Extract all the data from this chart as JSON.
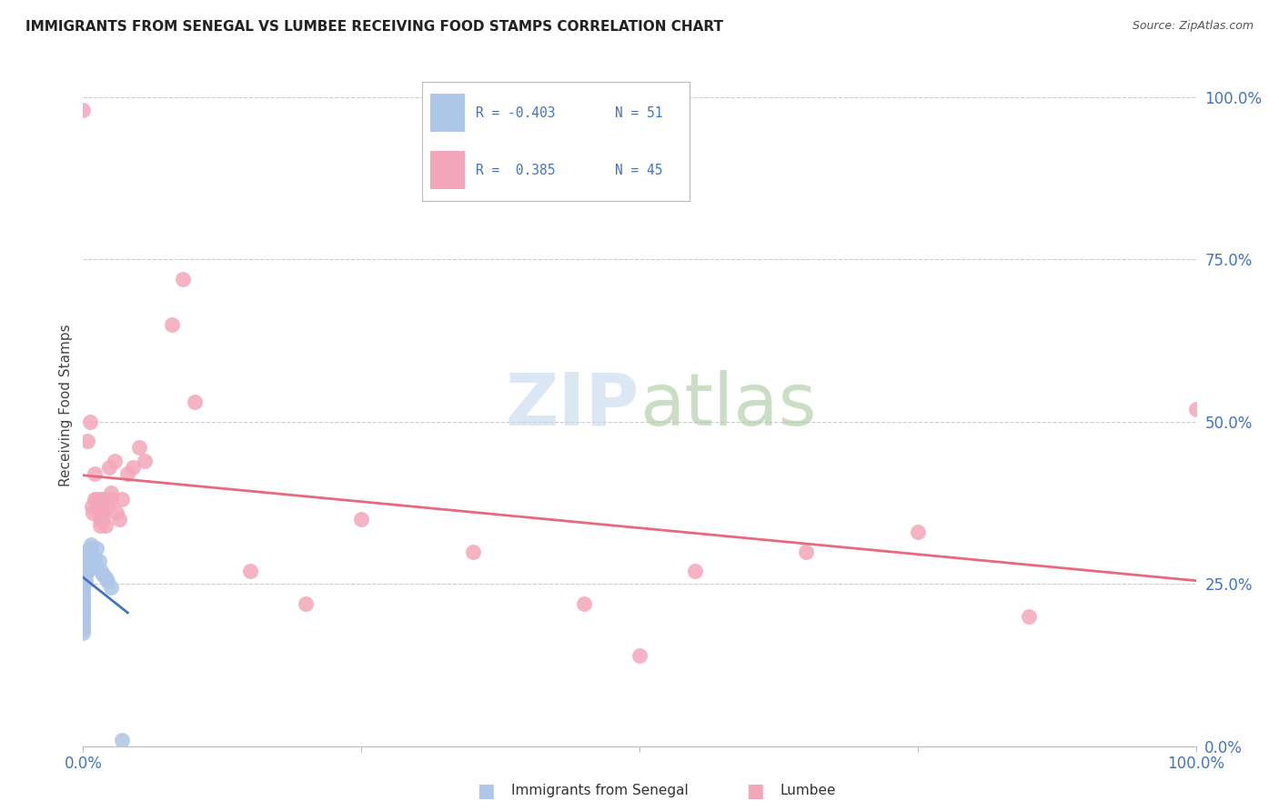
{
  "title": "IMMIGRANTS FROM SENEGAL VS LUMBEE RECEIVING FOOD STAMPS CORRELATION CHART",
  "source": "Source: ZipAtlas.com",
  "ylabel": "Receiving Food Stamps",
  "xlim": [
    0.0,
    1.0
  ],
  "ylim": [
    0.0,
    1.05
  ],
  "grid_color": "#cccccc",
  "background_color": "#ffffff",
  "senegal_color": "#aec6e8",
  "lumbee_color": "#f4a7b9",
  "senegal_line_color": "#4472c4",
  "lumbee_line_color": "#e8697d",
  "watermark_zip_color": "#c8d8ea",
  "watermark_atlas_color": "#a8c8a8",
  "senegal_x": [
    0.0,
    0.0,
    0.0,
    0.0,
    0.0,
    0.0,
    0.0,
    0.0,
    0.0,
    0.0,
    0.0,
    0.0,
    0.0,
    0.0,
    0.0,
    0.0,
    0.0,
    0.0,
    0.0,
    0.0,
    0.0,
    0.0,
    0.0,
    0.0,
    0.0,
    0.0,
    0.002,
    0.002,
    0.002,
    0.002,
    0.002,
    0.004,
    0.004,
    0.004,
    0.005,
    0.005,
    0.006,
    0.006,
    0.007,
    0.007,
    0.008,
    0.009,
    0.01,
    0.012,
    0.014,
    0.016,
    0.018,
    0.02,
    0.022,
    0.025,
    0.035
  ],
  "senegal_y": [
    0.3,
    0.295,
    0.29,
    0.285,
    0.28,
    0.275,
    0.27,
    0.265,
    0.26,
    0.255,
    0.25,
    0.245,
    0.24,
    0.235,
    0.23,
    0.225,
    0.22,
    0.215,
    0.21,
    0.205,
    0.2,
    0.195,
    0.19,
    0.185,
    0.18,
    0.175,
    0.295,
    0.285,
    0.275,
    0.265,
    0.255,
    0.3,
    0.285,
    0.27,
    0.295,
    0.28,
    0.305,
    0.29,
    0.31,
    0.295,
    0.285,
    0.275,
    0.29,
    0.305,
    0.285,
    0.27,
    0.265,
    0.26,
    0.255,
    0.245,
    0.01
  ],
  "lumbee_x": [
    0.0,
    0.004,
    0.006,
    0.008,
    0.009,
    0.01,
    0.01,
    0.012,
    0.013,
    0.014,
    0.015,
    0.015,
    0.016,
    0.017,
    0.018,
    0.018,
    0.019,
    0.02,
    0.02,
    0.022,
    0.023,
    0.025,
    0.025,
    0.028,
    0.03,
    0.032,
    0.035,
    0.04,
    0.045,
    0.05,
    0.055,
    0.08,
    0.09,
    0.1,
    0.15,
    0.2,
    0.25,
    0.35,
    0.45,
    0.5,
    0.55,
    0.65,
    0.75,
    0.85,
    1.0
  ],
  "lumbee_y": [
    0.98,
    0.47,
    0.5,
    0.37,
    0.36,
    0.38,
    0.42,
    0.38,
    0.37,
    0.36,
    0.35,
    0.34,
    0.38,
    0.37,
    0.36,
    0.35,
    0.38,
    0.38,
    0.34,
    0.37,
    0.43,
    0.39,
    0.38,
    0.44,
    0.36,
    0.35,
    0.38,
    0.42,
    0.43,
    0.46,
    0.44,
    0.65,
    0.72,
    0.53,
    0.27,
    0.22,
    0.35,
    0.3,
    0.22,
    0.14,
    0.27,
    0.3,
    0.33,
    0.2,
    0.52
  ],
  "senegal_r": -0.403,
  "senegal_n": 51,
  "lumbee_r": 0.385,
  "lumbee_n": 45
}
